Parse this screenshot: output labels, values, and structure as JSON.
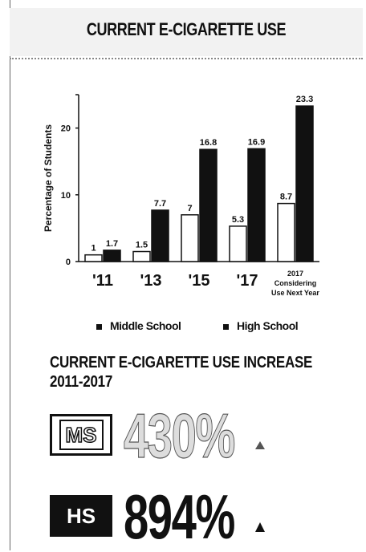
{
  "header": {
    "title": "CURRENT E-CIGARETTE USE"
  },
  "chart_data": {
    "type": "bar",
    "categories": [
      "'11",
      "'13",
      "'15",
      "'17",
      "2017 Considering Use Next Year"
    ],
    "category_lines": [
      [
        "'11"
      ],
      [
        "'13"
      ],
      [
        "'15"
      ],
      [
        "'17"
      ],
      [
        "2017",
        "Considering",
        "Use Next Year"
      ]
    ],
    "series": [
      {
        "name": "Middle School",
        "values": [
          1,
          1.5,
          7,
          5.3,
          8.7
        ],
        "labels": [
          "1",
          "1.5",
          "7",
          "5.3",
          "8.7"
        ],
        "color": "#ffffff"
      },
      {
        "name": "High School",
        "values": [
          1.7,
          7.7,
          16.8,
          16.9,
          23.3
        ],
        "labels": [
          "1.7",
          "7.7",
          "16.8",
          "16.9",
          "23.3"
        ],
        "color": "#111111"
      }
    ],
    "ylabel": "Percentage of Students",
    "yticks": [
      "0",
      "10",
      "20"
    ],
    "ylim": [
      0,
      25
    ],
    "legend_position": "bottom"
  },
  "increase": {
    "title_line1": "CURRENT E-CIGARETTE USE INCREASE",
    "title_line2": "2011-2017",
    "ms_badge": "MS",
    "ms_value": "430%",
    "hs_badge": "HS",
    "hs_value": "894%"
  }
}
